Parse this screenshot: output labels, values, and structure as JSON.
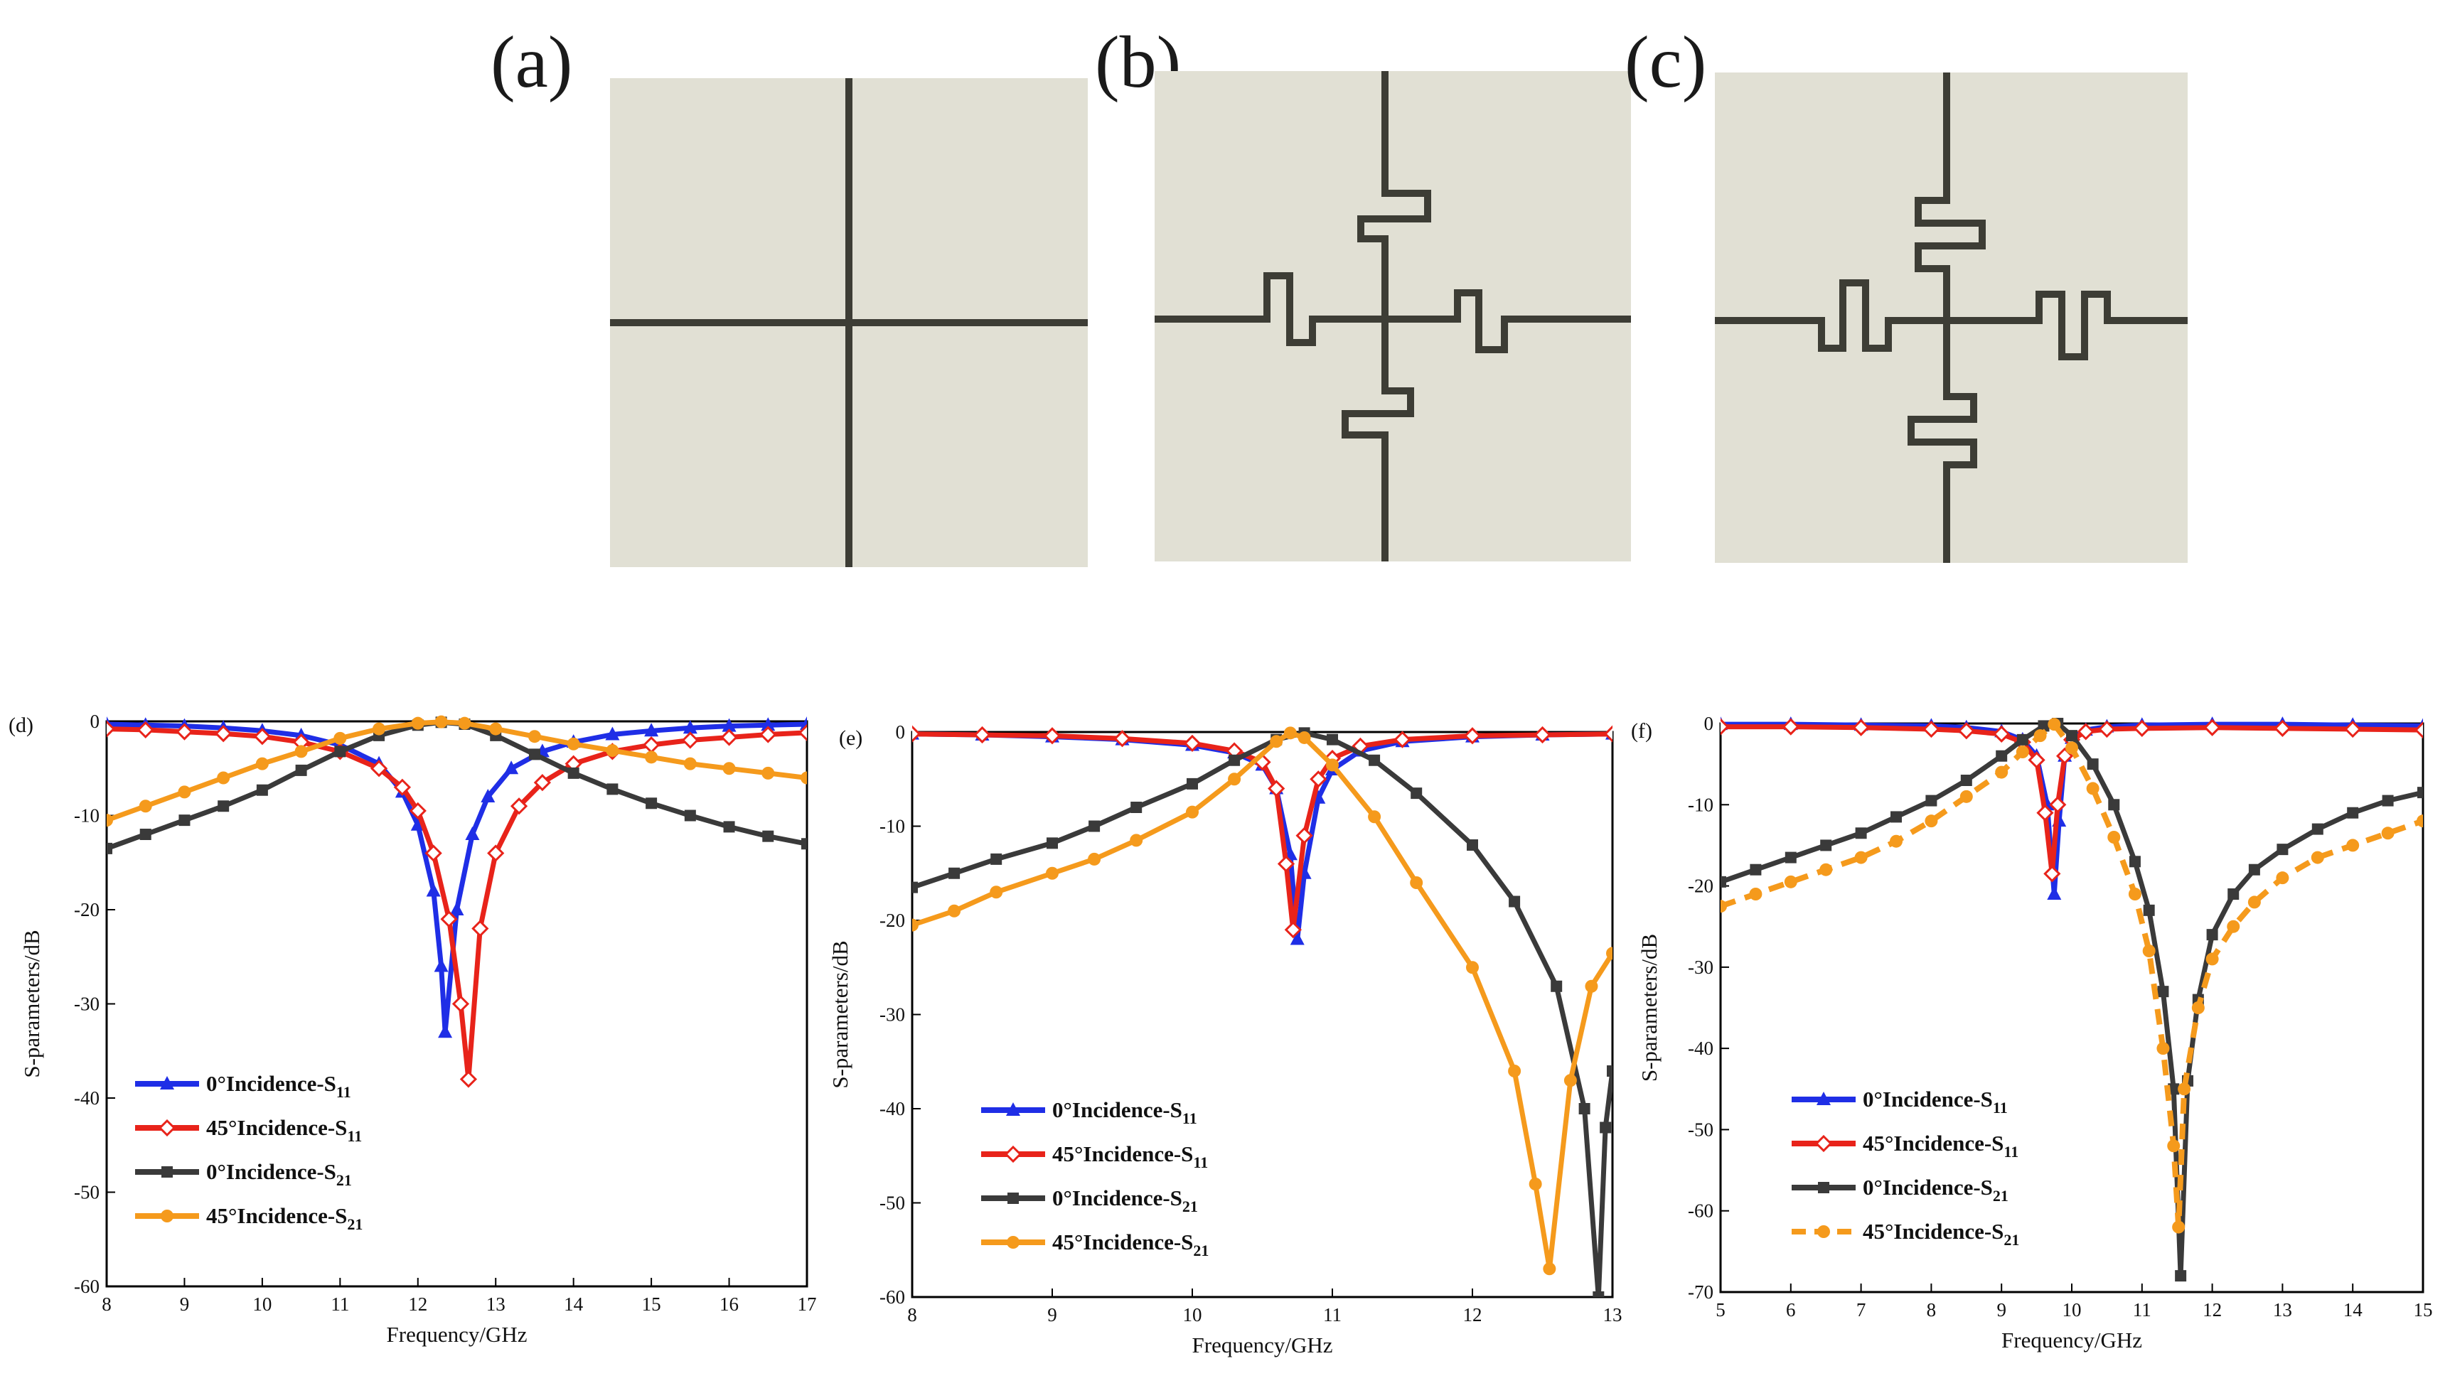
{
  "figure": {
    "unit_cells": [
      {
        "label": "(a)",
        "shape": "plain-cross"
      },
      {
        "label": "(b)",
        "shape": "meander-cross-symmetric"
      },
      {
        "label": "(c)",
        "shape": "meander-cross-offset"
      }
    ],
    "colors": {
      "cell_bg": "#e1e0d4",
      "conductor": "#3d3d35",
      "blue": "#1f2ee6",
      "red": "#e8231a",
      "black": "#3a3a3a",
      "orange": "#f59a1c"
    }
  },
  "chart_data": [
    {
      "panel_label": "(d)",
      "type": "line",
      "xlabel": "Frequency/GHz",
      "ylabel": "S-parameters/dB",
      "xlim": [
        8,
        17
      ],
      "ylim": [
        -60,
        0
      ],
      "xticks": [
        8,
        9,
        10,
        11,
        12,
        13,
        14,
        15,
        16,
        17
      ],
      "yticks": [
        0,
        -10,
        -20,
        -30,
        -40,
        -50,
        -60
      ],
      "series": [
        {
          "name": "0°Incidence-S",
          "sub": "11",
          "color": "#1f2ee6",
          "marker": "triangle",
          "dash": false,
          "x": [
            8,
            8.5,
            9,
            9.5,
            10,
            10.5,
            11,
            11.5,
            11.8,
            12,
            12.2,
            12.3,
            12.35,
            12.5,
            12.7,
            12.9,
            13.2,
            13.6,
            14,
            14.5,
            15,
            15.5,
            16,
            16.5,
            17
          ],
          "y": [
            -0.3,
            -0.4,
            -0.5,
            -0.7,
            -1.0,
            -1.5,
            -2.5,
            -4.5,
            -7.5,
            -11,
            -18,
            -26,
            -33,
            -20,
            -12,
            -8,
            -5,
            -3.2,
            -2.2,
            -1.4,
            -1.0,
            -0.7,
            -0.5,
            -0.4,
            -0.3
          ]
        },
        {
          "name": "45°Incidence-S",
          "sub": "11",
          "color": "#e8231a",
          "marker": "diamond",
          "dash": false,
          "x": [
            8,
            8.5,
            9,
            9.5,
            10,
            10.5,
            11,
            11.5,
            11.8,
            12,
            12.2,
            12.4,
            12.55,
            12.65,
            12.8,
            13,
            13.3,
            13.6,
            14,
            14.5,
            15,
            15.5,
            16,
            16.5,
            17
          ],
          "y": [
            -0.8,
            -0.9,
            -1.1,
            -1.3,
            -1.6,
            -2.2,
            -3.2,
            -5,
            -7,
            -9.5,
            -14,
            -21,
            -30,
            -38,
            -22,
            -14,
            -9,
            -6.5,
            -4.5,
            -3.2,
            -2.5,
            -2.0,
            -1.7,
            -1.4,
            -1.2
          ]
        },
        {
          "name": "0°Incidence-S",
          "sub": "21",
          "color": "#3a3a3a",
          "marker": "square",
          "dash": false,
          "x": [
            8,
            8.5,
            9,
            9.5,
            10,
            10.5,
            11,
            11.5,
            12,
            12.3,
            12.6,
            13,
            13.5,
            14,
            14.5,
            15,
            15.5,
            16,
            16.5,
            17
          ],
          "y": [
            -13.5,
            -12,
            -10.5,
            -9,
            -7.3,
            -5.2,
            -3.2,
            -1.5,
            -0.4,
            -0.1,
            -0.3,
            -1.5,
            -3.5,
            -5.5,
            -7.2,
            -8.7,
            -10,
            -11.2,
            -12.2,
            -13
          ]
        },
        {
          "name": "45°Incidence-S",
          "sub": "21",
          "color": "#f59a1c",
          "marker": "circle",
          "dash": false,
          "x": [
            8,
            8.5,
            9,
            9.5,
            10,
            10.5,
            11,
            11.5,
            12,
            12.3,
            12.6,
            13,
            13.5,
            14,
            14.5,
            15,
            15.5,
            16,
            16.5,
            17
          ],
          "y": [
            -10.5,
            -9,
            -7.5,
            -6,
            -4.5,
            -3.2,
            -1.8,
            -0.8,
            -0.2,
            -0.05,
            -0.2,
            -0.8,
            -1.6,
            -2.4,
            -3.1,
            -3.8,
            -4.5,
            -5.0,
            -5.5,
            -6
          ]
        }
      ]
    },
    {
      "panel_label": "(e)",
      "type": "line",
      "xlabel": "Frequency/GHz",
      "ylabel": "S-parameters/dB",
      "xlim": [
        8,
        13
      ],
      "ylim": [
        -60,
        0
      ],
      "xticks": [
        8,
        9,
        10,
        11,
        12,
        13
      ],
      "yticks": [
        0,
        -10,
        -20,
        -30,
        -40,
        -50,
        -60
      ],
      "series": [
        {
          "name": "0°Incidence-S",
          "sub": "11",
          "color": "#1f2ee6",
          "marker": "triangle",
          "dash": false,
          "x": [
            8,
            8.5,
            9,
            9.5,
            10,
            10.3,
            10.5,
            10.6,
            10.7,
            10.75,
            10.8,
            10.9,
            11,
            11.2,
            11.5,
            12,
            12.5,
            13
          ],
          "y": [
            -0.2,
            -0.3,
            -0.5,
            -0.8,
            -1.4,
            -2.2,
            -3.5,
            -6,
            -13,
            -22,
            -15,
            -7,
            -4,
            -2,
            -1.0,
            -0.5,
            -0.3,
            -0.2
          ]
        },
        {
          "name": "45°Incidence-S",
          "sub": "11",
          "color": "#e8231a",
          "marker": "diamond",
          "dash": false,
          "x": [
            8,
            8.5,
            9,
            9.5,
            10,
            10.3,
            10.5,
            10.6,
            10.67,
            10.72,
            10.8,
            10.9,
            11,
            11.2,
            11.5,
            12,
            12.5,
            13
          ],
          "y": [
            -0.2,
            -0.3,
            -0.4,
            -0.7,
            -1.2,
            -2.0,
            -3.2,
            -6,
            -14,
            -21,
            -11,
            -5,
            -2.8,
            -1.5,
            -0.8,
            -0.4,
            -0.3,
            -0.2
          ]
        },
        {
          "name": "0°Incidence-S",
          "sub": "21",
          "color": "#3a3a3a",
          "marker": "square",
          "dash": false,
          "x": [
            8,
            8.3,
            8.6,
            9,
            9.3,
            9.6,
            10,
            10.3,
            10.6,
            10.8,
            11,
            11.3,
            11.6,
            12,
            12.3,
            12.6,
            12.8,
            12.9,
            12.95,
            13
          ],
          "y": [
            -16.5,
            -15,
            -13.5,
            -11.8,
            -10,
            -8,
            -5.5,
            -3,
            -0.8,
            -0.1,
            -0.8,
            -3,
            -6.5,
            -12,
            -18,
            -27,
            -40,
            -60,
            -42,
            -36
          ]
        },
        {
          "name": "45°Incidence-S",
          "sub": "21",
          "color": "#f59a1c",
          "marker": "circle",
          "dash": false,
          "x": [
            8,
            8.3,
            8.6,
            9,
            9.3,
            9.6,
            10,
            10.3,
            10.6,
            10.7,
            10.8,
            11,
            11.3,
            11.6,
            12,
            12.3,
            12.45,
            12.55,
            12.7,
            12.85,
            13
          ],
          "y": [
            -20.5,
            -19,
            -17,
            -15,
            -13.5,
            -11.5,
            -8.5,
            -5,
            -1,
            -0.1,
            -0.6,
            -3.5,
            -9,
            -16,
            -25,
            -36,
            -48,
            -57,
            -37,
            -27,
            -23.5
          ]
        }
      ]
    },
    {
      "panel_label": "(f)",
      "type": "line",
      "xlabel": "Frequency/GHz",
      "ylabel": "S-parameters/dB",
      "xlim": [
        5,
        15
      ],
      "ylim": [
        -70,
        0
      ],
      "xticks": [
        5,
        6,
        7,
        8,
        9,
        10,
        11,
        12,
        13,
        14,
        15
      ],
      "yticks": [
        0,
        -10,
        -20,
        -30,
        -40,
        -50,
        -60,
        -70
      ],
      "series": [
        {
          "name": "0°Incidence-S",
          "sub": "11",
          "color": "#1f2ee6",
          "marker": "triangle",
          "dash": false,
          "x": [
            5,
            6,
            7,
            8,
            8.5,
            9,
            9.3,
            9.5,
            9.65,
            9.75,
            9.82,
            9.9,
            10,
            10.2,
            10.5,
            11,
            12,
            13,
            14,
            15
          ],
          "y": [
            -0.1,
            -0.1,
            -0.2,
            -0.3,
            -0.5,
            -1.0,
            -2,
            -4,
            -10,
            -21,
            -12,
            -4,
            -1.8,
            -0.8,
            -0.4,
            -0.2,
            -0.1,
            -0.1,
            -0.2,
            -0.3
          ]
        },
        {
          "name": "45°Incidence-S",
          "sub": "11",
          "color": "#e8231a",
          "marker": "diamond",
          "dash": false,
          "x": [
            5,
            6,
            7,
            8,
            8.5,
            9,
            9.3,
            9.5,
            9.62,
            9.72,
            9.8,
            9.9,
            10,
            10.2,
            10.5,
            11,
            12,
            13,
            14,
            15
          ],
          "y": [
            -0.4,
            -0.4,
            -0.5,
            -0.7,
            -0.9,
            -1.3,
            -2.3,
            -4.5,
            -11,
            -18.5,
            -10,
            -4,
            -2,
            -1.0,
            -0.7,
            -0.6,
            -0.5,
            -0.6,
            -0.7,
            -0.8
          ]
        },
        {
          "name": "0°Incidence-S",
          "sub": "21",
          "color": "#3a3a3a",
          "marker": "square",
          "dash": false,
          "x": [
            5,
            5.5,
            6,
            6.5,
            7,
            7.5,
            8,
            8.5,
            9,
            9.3,
            9.6,
            9.8,
            10,
            10.3,
            10.6,
            10.9,
            11.1,
            11.3,
            11.45,
            11.55,
            11.65,
            11.8,
            12,
            12.3,
            12.6,
            13,
            13.5,
            14,
            14.5,
            15
          ],
          "y": [
            -19.5,
            -18,
            -16.5,
            -15,
            -13.5,
            -11.5,
            -9.5,
            -7,
            -4,
            -2,
            -0.3,
            0,
            -1.5,
            -5,
            -10,
            -17,
            -23,
            -33,
            -45,
            -68,
            -44,
            -34,
            -26,
            -21,
            -18,
            -15.5,
            -13,
            -11,
            -9.5,
            -8.5
          ]
        },
        {
          "name": "45°Incidence-S",
          "sub": "21",
          "color": "#f59a1c",
          "marker": "circle",
          "dash": true,
          "x": [
            5,
            5.5,
            6,
            6.5,
            7,
            7.5,
            8,
            8.5,
            9,
            9.3,
            9.55,
            9.75,
            10,
            10.3,
            10.6,
            10.9,
            11.1,
            11.3,
            11.45,
            11.52,
            11.6,
            11.8,
            12,
            12.3,
            12.6,
            13,
            13.5,
            14,
            14.5,
            15
          ],
          "y": [
            -22.5,
            -21,
            -19.5,
            -18,
            -16.5,
            -14.5,
            -12,
            -9,
            -6,
            -3.5,
            -1.5,
            -0.1,
            -3,
            -8,
            -14,
            -21,
            -28,
            -40,
            -52,
            -62,
            -45,
            -35,
            -29,
            -25,
            -22,
            -19,
            -16.5,
            -15,
            -13.5,
            -12
          ]
        }
      ]
    }
  ]
}
